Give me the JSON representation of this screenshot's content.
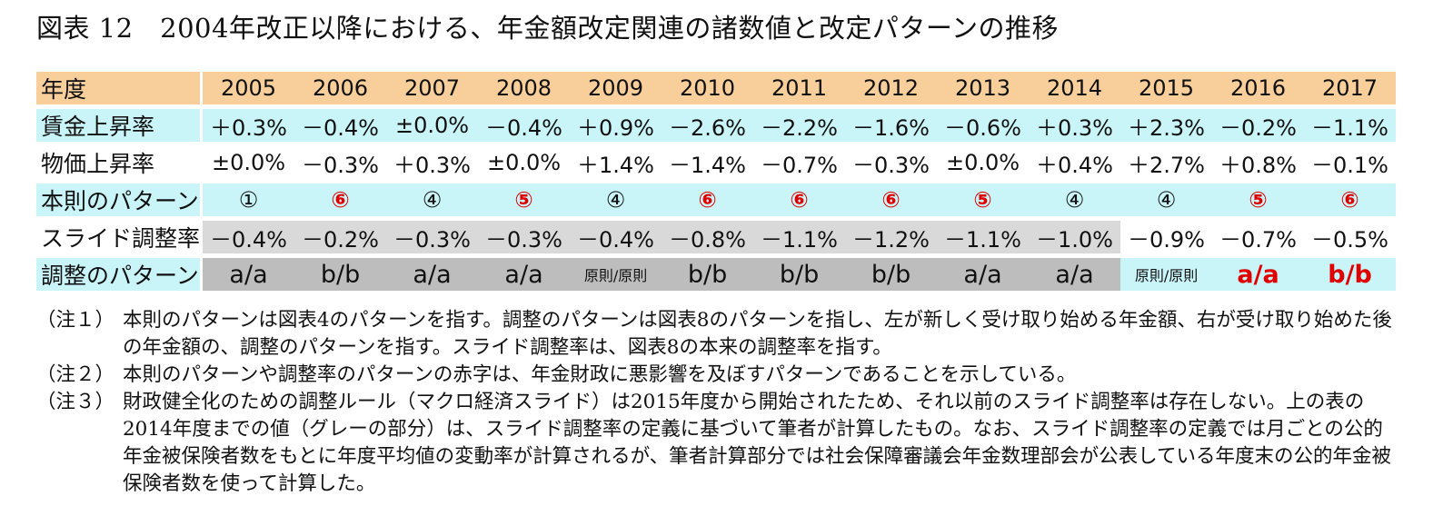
{
  "title": "図表 12　2004年改正以降における、年金額改定関連の諸数値と改定パターンの推移",
  "table": {
    "header_label": "年度",
    "years": [
      "2005",
      "2006",
      "2007",
      "2008",
      "2009",
      "2010",
      "2011",
      "2012",
      "2013",
      "2014",
      "2015",
      "2016",
      "2017"
    ],
    "rows": {
      "wage": {
        "label": "賃金上昇率",
        "values": [
          "＋0.3%",
          "－0.4%",
          "±0.0%",
          "－0.4%",
          "＋0.9%",
          "－2.6%",
          "－2.2%",
          "－1.6%",
          "－0.6%",
          "＋0.3%",
          "＋2.3%",
          "－0.2%",
          "－1.1%"
        ]
      },
      "price": {
        "label": "物価上昇率",
        "values": [
          "±0.0%",
          "－0.3%",
          "＋0.3%",
          "±0.0%",
          "＋1.4%",
          "－1.4%",
          "－0.7%",
          "－0.3%",
          "±0.0%",
          "＋0.4%",
          "＋2.7%",
          "＋0.8%",
          "－0.1%"
        ]
      },
      "pattern": {
        "label": "本則のパターン",
        "values": [
          "①",
          "⑥",
          "④",
          "⑤",
          "④",
          "⑥",
          "⑥",
          "⑥",
          "⑤",
          "④",
          "④",
          "⑤",
          "⑥"
        ],
        "red": [
          false,
          true,
          false,
          true,
          false,
          true,
          true,
          true,
          true,
          false,
          false,
          true,
          true
        ]
      },
      "slide": {
        "label": "スライド調整率",
        "values": [
          "－0.4%",
          "－0.2%",
          "－0.3%",
          "－0.3%",
          "－0.4%",
          "－0.8%",
          "－1.1%",
          "－1.2%",
          "－1.1%",
          "－1.0%",
          "－0.9%",
          "－0.7%",
          "－0.5%"
        ],
        "grey": [
          true,
          true,
          true,
          true,
          true,
          true,
          true,
          true,
          true,
          true,
          false,
          false,
          false
        ]
      },
      "adjust": {
        "label": "調整のパターン",
        "values": [
          "a/a",
          "b/b",
          "a/a",
          "a/a",
          "原則/原則",
          "b/b",
          "b/b",
          "b/b",
          "a/a",
          "a/a",
          "原則/原則",
          "a/a",
          "b/b"
        ],
        "red": [
          false,
          false,
          false,
          false,
          false,
          false,
          false,
          false,
          false,
          false,
          false,
          true,
          true
        ],
        "grey": [
          true,
          true,
          true,
          true,
          true,
          true,
          true,
          true,
          true,
          true,
          false,
          false,
          false
        ]
      }
    }
  },
  "notes": [
    {
      "label": "（注１）",
      "text": "本則のパターンは図表4のパターンを指す。調整のパターンは図表8のパターンを指し、左が新しく受け取り始める年金額、右が受け取り始めた後の年金額の、調整のパターンを指す。スライド調整率は、図表8の本来の調整率を指す。"
    },
    {
      "label": "（注２）",
      "text": "本則のパターンや調整率のパターンの赤字は、年金財政に悪影響を及ぼすパターンであることを示している。"
    },
    {
      "label": "（注３）",
      "text": "財政健全化のための調整ルール（マクロ経済スライド）は2015年度から開始されたため、それ以前のスライド調整率は存在しない。上の表の2014年度までの値（グレーの部分）は、スライド調整率の定義に基づいて筆者が計算したもの。なお、スライド調整率の定義では月ごとの公的年金被保険者数をもとに年度平均値の変動率が計算されるが、筆者計算部分では社会保障審議会年金数理部会が公表している年度末の公的年金被保険者数を使って計算した。"
    }
  ]
}
